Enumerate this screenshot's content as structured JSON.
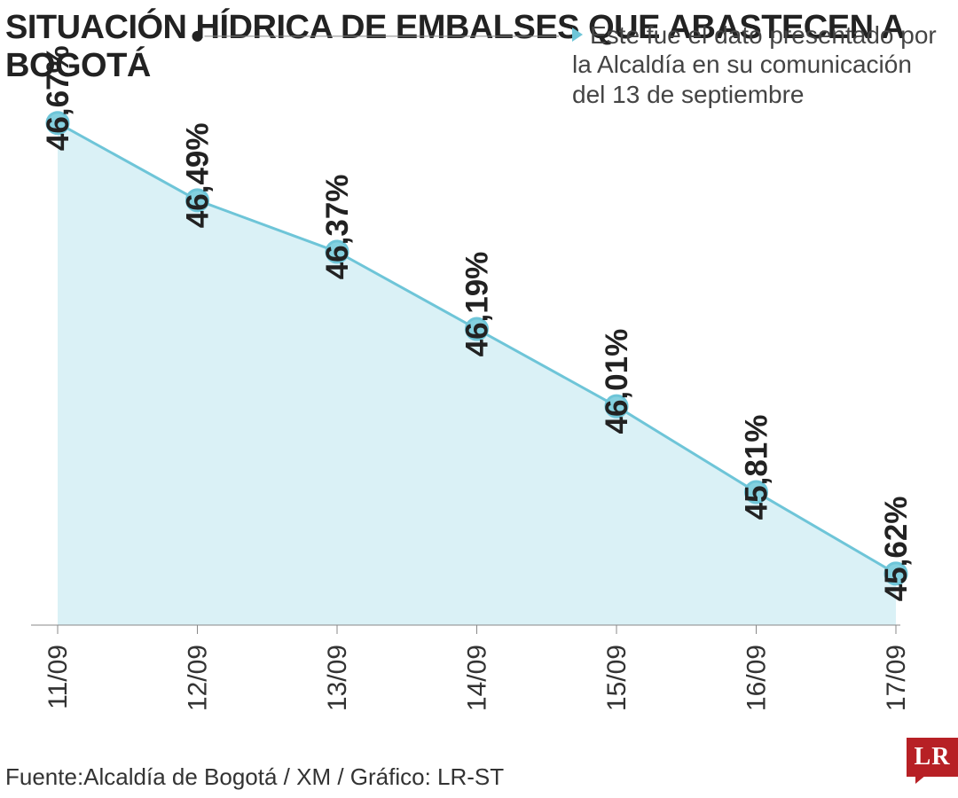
{
  "title": "SITUACIÓN HÍDRICA DE EMBALSES QUE ABASTECEN A BOGOTÁ",
  "chart": {
    "type": "area",
    "categories": [
      "11/09",
      "12/09",
      "13/09",
      "14/09",
      "15/09",
      "16/09",
      "17/09"
    ],
    "values": [
      46.67,
      46.49,
      46.37,
      46.19,
      46.01,
      45.81,
      45.62
    ],
    "value_labels": [
      "46,67%",
      "46,49%",
      "46,37%",
      "46,19%",
      "46,01%",
      "45,81%",
      "45,62%"
    ],
    "ylim": [
      45.5,
      46.75
    ],
    "line_color": "#6ec5d8",
    "area_fill_color": "#bce5ee",
    "point_fill_color": "#84d0df",
    "point_stroke_color": "#6ec5d8",
    "point_radius": 12,
    "baseline_color": "#888888",
    "label_fontsize": 35,
    "xlabel_fontsize": 30,
    "background": "#ffffff",
    "annotation": {
      "target_index": 1,
      "text": "Este fue el dato presentado por la Alcaldía en su comunicación del 13 de septiembre",
      "arrow_color": "#6ec5d8"
    }
  },
  "source": "Fuente:Alcaldía de Bogotá / XM / Gráfico: LR-ST",
  "logo": {
    "text": "LR",
    "bg": "#b72025",
    "fg": "#ffffff"
  }
}
